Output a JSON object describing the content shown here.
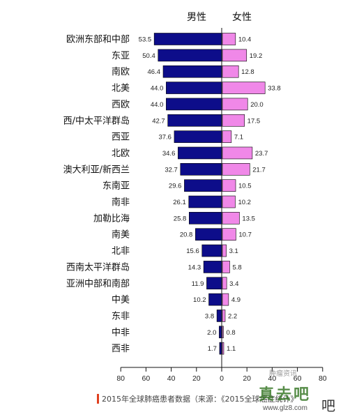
{
  "chart_data": {
    "type": "bar",
    "orientation": "horizontal",
    "layout": "diverging",
    "categories": [
      "欧洲东部和中部",
      "东亚",
      "南欧",
      "北美",
      "西欧",
      "西/中太平洋群岛",
      "西亚",
      "北欧",
      "澳大利亚/新西兰",
      "东南亚",
      "南非",
      "加勒比海",
      "南美",
      "北非",
      "西南太平洋群岛",
      "亚洲中部和南部",
      "中美",
      "东非",
      "中非",
      "西非"
    ],
    "series": [
      {
        "name": "男性",
        "direction": "left",
        "color": "#0d0d8a",
        "values": [
          53.5,
          50.4,
          46.4,
          44.0,
          44.0,
          42.7,
          37.6,
          34.6,
          32.7,
          29.6,
          26.1,
          25.8,
          20.8,
          15.6,
          14.3,
          11.9,
          10.2,
          3.8,
          2.0,
          1.7
        ],
        "labels": [
          "53.5",
          "50.4",
          "46.4",
          "44.0",
          "44.0",
          "42.7",
          "37.6",
          "34.6",
          "32.7",
          "29.6",
          "26.1",
          "25.8",
          "20.8",
          "15.6",
          "14.3",
          "11.9",
          "10.2",
          "3.8",
          "2.0",
          "1.7"
        ]
      },
      {
        "name": "女性",
        "direction": "right",
        "color": "#f088e8",
        "values": [
          10.4,
          19.2,
          12.8,
          33.8,
          20.0,
          17.5,
          7.1,
          23.7,
          21.7,
          10.5,
          10.2,
          13.5,
          10.7,
          3.1,
          5.8,
          3.4,
          4.9,
          2.2,
          0.8,
          1.1
        ],
        "labels": [
          "10.4",
          "19.2",
          "12.8",
          "33.8",
          "20.0",
          "17.5",
          "7.1",
          "23.7",
          "21.7",
          "10.5",
          "10.2",
          "13.5",
          "10.7",
          "3.1",
          "5.8",
          "3.4",
          "4.9",
          "2.2",
          "0.8",
          "1.1"
        ]
      }
    ],
    "xlim": [
      -80,
      80
    ],
    "xticks": [
      -80,
      -60,
      -40,
      -20,
      0,
      20,
      40,
      60,
      80
    ],
    "xtick_labels": [
      "80",
      "60",
      "40",
      "20",
      "0",
      "20",
      "40",
      "60",
      "80"
    ],
    "grid": false,
    "legend": "none"
  },
  "caption": "2015年全球肺癌患者数据（来源：《2015全球癌症统计》",
  "watermarks": {
    "wechat": "肿瘤资讯",
    "logo": "真去吧",
    "url": "www.glz8.com",
    "suffix": "吧"
  },
  "colors": {
    "male_fill": "#0d0d8a",
    "female_fill": "#f088e8",
    "caption_accent": "#e0401f"
  }
}
